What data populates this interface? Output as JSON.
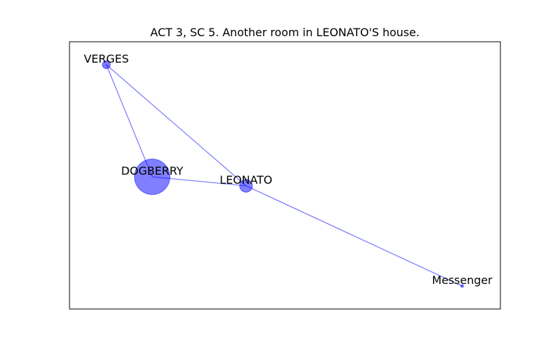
{
  "title": "ACT 3, SC 5. Another room in LEONATO'S house.",
  "colors": {
    "node": "#0000ff",
    "edge": "#0000ff",
    "frame": "#000000"
  },
  "nodes": [
    {
      "id": "verges",
      "label": "VERGES",
      "weight": 1.0
    },
    {
      "id": "dogberry",
      "label": "DOGBERRY",
      "weight": 20.0
    },
    {
      "id": "leonato",
      "label": "LEONATO",
      "weight": 2.6
    },
    {
      "id": "messenger",
      "label": "Messenger",
      "weight": 0.1
    }
  ],
  "edges": [
    {
      "source": "verges",
      "target": "dogberry"
    },
    {
      "source": "verges",
      "target": "leonato"
    },
    {
      "source": "dogberry",
      "target": "leonato"
    },
    {
      "source": "leonato",
      "target": "messenger"
    }
  ]
}
